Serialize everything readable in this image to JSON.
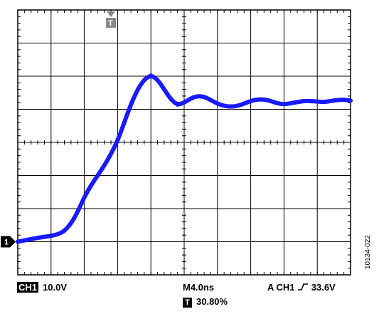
{
  "chart_data": {
    "type": "line",
    "title": "",
    "xlabel": "",
    "ylabel": "",
    "divisions": {
      "x": 10,
      "y": 8
    },
    "grid": true,
    "ylim_div": [
      -4,
      4
    ],
    "xlim_div": [
      0,
      10
    ],
    "series": [
      {
        "color": "#1a1aff",
        "channel": "1",
        "x_div": [
          0.0,
          0.3,
          0.6,
          0.9,
          1.2,
          1.4,
          1.6,
          1.8,
          2.0,
          2.2,
          2.4,
          2.6,
          2.8,
          3.0,
          3.2,
          3.4,
          3.6,
          3.8,
          4.0,
          4.2,
          4.4,
          4.6,
          4.8,
          5.0,
          5.2,
          5.4,
          5.6,
          5.8,
          6.0,
          6.2,
          6.4,
          6.6,
          6.8,
          7.0,
          7.2,
          7.4,
          7.6,
          7.8,
          8.0,
          8.2,
          8.4,
          8.6,
          8.8,
          9.0,
          9.2,
          9.4,
          9.6,
          9.8,
          10.0
        ],
        "y_div": [
          -3.0,
          -2.94,
          -2.88,
          -2.84,
          -2.78,
          -2.68,
          -2.45,
          -2.1,
          -1.65,
          -1.3,
          -1.0,
          -0.7,
          -0.35,
          0.05,
          0.6,
          1.15,
          1.6,
          1.9,
          2.03,
          1.9,
          1.6,
          1.3,
          1.13,
          1.2,
          1.33,
          1.4,
          1.38,
          1.28,
          1.17,
          1.1,
          1.08,
          1.1,
          1.17,
          1.25,
          1.3,
          1.3,
          1.25,
          1.18,
          1.15,
          1.18,
          1.22,
          1.25,
          1.25,
          1.23,
          1.22,
          1.25,
          1.28,
          1.29,
          1.26
        ]
      }
    ],
    "trigger_marker": "T",
    "channel_marker": "1",
    "settings": {
      "channel_label": "CH1",
      "volts_per_div": "10.0V",
      "timebase": "M4.0ns",
      "trigger_info": "A  CH1 ",
      "trigger_level": " 33.6V",
      "trigger_position_badge": "T",
      "trigger_position": "30.80%"
    }
  },
  "figure_id": "10134-022"
}
